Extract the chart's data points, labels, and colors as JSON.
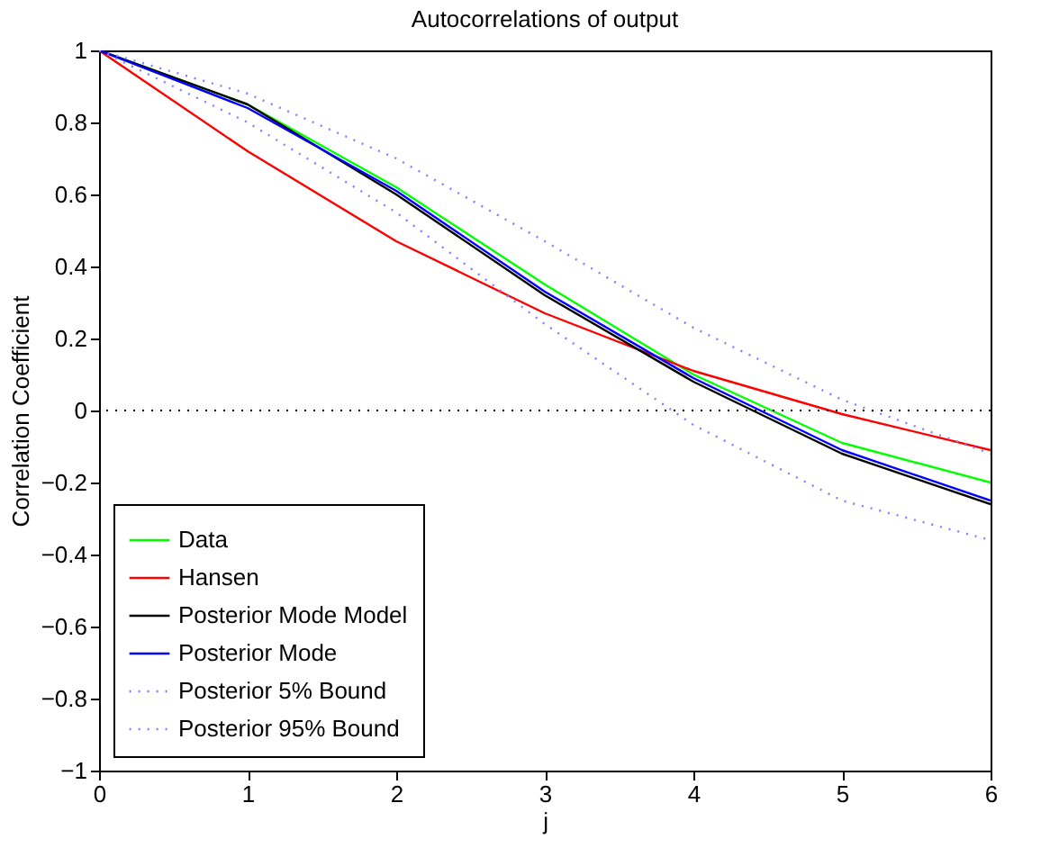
{
  "chart_data": {
    "type": "line",
    "title": "Autocorrelations of output",
    "xlabel": "j",
    "ylabel": "Correlation Coefficient",
    "x": [
      0,
      1,
      2,
      3,
      4,
      5,
      6
    ],
    "series": [
      {
        "name": "Data",
        "color": "#00ff00",
        "values": [
          1,
          0.85,
          0.62,
          0.35,
          0.1,
          -0.09,
          -0.2
        ]
      },
      {
        "name": "Hansen",
        "color": "#ff0000",
        "values": [
          1,
          0.72,
          0.47,
          0.27,
          0.11,
          -0.01,
          -0.11
        ]
      },
      {
        "name": "Posterior Mode Model",
        "color": "#000000",
        "values": [
          1,
          0.85,
          0.6,
          0.32,
          0.08,
          -0.12,
          -0.26
        ]
      },
      {
        "name": "Posterior Mode",
        "color": "#0000ff",
        "values": [
          1,
          0.84,
          0.61,
          0.33,
          0.09,
          -0.11,
          -0.25
        ]
      },
      {
        "name": "Posterior 5% Bound",
        "color": "#8080ff",
        "line_style": "dotted",
        "values": [
          1,
          0.8,
          0.55,
          0.24,
          -0.04,
          -0.25,
          -0.36
        ]
      },
      {
        "name": "Posterior 95% Bound",
        "color": "#8080ff",
        "line_style": "dotted",
        "values": [
          1,
          0.88,
          0.7,
          0.47,
          0.23,
          0.03,
          -0.12
        ]
      }
    ],
    "xlim": [
      0,
      6
    ],
    "xticks": [
      0,
      1,
      2,
      3,
      4,
      5,
      6
    ],
    "ylim": [
      -1,
      1
    ],
    "yticks": [
      -1,
      -0.8,
      -0.6,
      -0.4,
      -0.2,
      0,
      0.2,
      0.4,
      0.6,
      0.8,
      1
    ],
    "ref_lines": [
      {
        "axis": "y",
        "value": 0,
        "color": "#000000",
        "line_style": "dotted"
      }
    ],
    "grid": false,
    "legend": "bottom left",
    "line_style": "solid",
    "marker": "none"
  }
}
